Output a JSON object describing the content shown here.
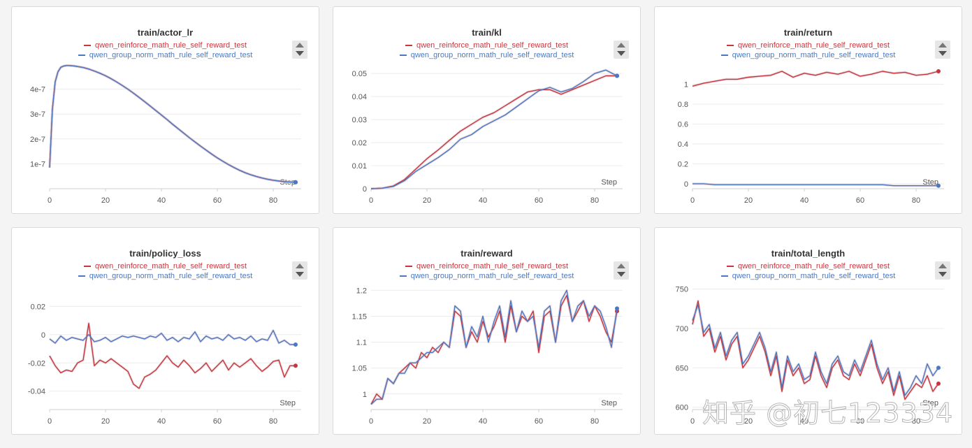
{
  "colors": {
    "series0": "#c9353d",
    "series1": "#4a78c2",
    "grid": "#ececec",
    "axis": "#cfcfcf",
    "text": "#555555",
    "raw": "#d8c7cb"
  },
  "legend_names": [
    "qwen_reinforce_math_rule_self_reward_test",
    "qwen_group_norm_math_rule_self_reward_test"
  ],
  "step_label": "Step",
  "watermark": "知乎 @初七123334",
  "chart_data": [
    {
      "type": "line",
      "title": "train/actor_lr",
      "xlabel": "Step",
      "xlim": [
        0,
        90
      ],
      "ylim": [
        0,
        5e-07
      ],
      "xticks": [
        0,
        20,
        40,
        60,
        80
      ],
      "yticks": [
        1e-07,
        2e-07,
        3e-07,
        4e-07
      ],
      "yticklabels": [
        "1e-7",
        "2e-7",
        "3e-7",
        "4e-7"
      ],
      "grid": true,
      "legend": "top-center",
      "x": [
        0,
        1,
        2,
        3,
        4,
        5,
        6,
        7,
        8,
        9,
        10,
        12,
        14,
        16,
        18,
        20,
        22,
        24,
        26,
        28,
        30,
        32,
        34,
        36,
        38,
        40,
        42,
        44,
        46,
        48,
        50,
        52,
        54,
        56,
        58,
        60,
        62,
        64,
        66,
        68,
        70,
        72,
        74,
        76,
        78,
        80,
        82,
        84,
        86,
        88
      ],
      "series": [
        {
          "name": "qwen_reinforce_math_rule_self_reward_test",
          "values": [
            8.5e-08,
            3.2e-07,
            4.3e-07,
            4.7e-07,
            4.88e-07,
            4.93e-07,
            4.95e-07,
            4.95e-07,
            4.94e-07,
            4.93e-07,
            4.91e-07,
            4.87e-07,
            4.81e-07,
            4.73e-07,
            4.64e-07,
            4.54e-07,
            4.42e-07,
            4.29e-07,
            4.15e-07,
            4e-07,
            3.84e-07,
            3.67e-07,
            3.5e-07,
            3.32e-07,
            3.14e-07,
            2.96e-07,
            2.78e-07,
            2.59e-07,
            2.41e-07,
            2.23e-07,
            2.05e-07,
            1.88e-07,
            1.71e-07,
            1.55e-07,
            1.39e-07,
            1.24e-07,
            1.1e-07,
            9.7e-08,
            8.5e-08,
            7.4e-08,
            6.4e-08,
            5.6e-08,
            4.9e-08,
            4.3e-08,
            3.8e-08,
            3.4e-08,
            3.1e-08,
            2.8e-08,
            2.7e-08,
            2.6e-08
          ]
        },
        {
          "name": "qwen_group_norm_math_rule_self_reward_test",
          "values": [
            8.5e-08,
            3.2e-07,
            4.3e-07,
            4.7e-07,
            4.88e-07,
            4.93e-07,
            4.95e-07,
            4.95e-07,
            4.94e-07,
            4.93e-07,
            4.91e-07,
            4.87e-07,
            4.81e-07,
            4.73e-07,
            4.64e-07,
            4.54e-07,
            4.42e-07,
            4.29e-07,
            4.15e-07,
            4e-07,
            3.84e-07,
            3.67e-07,
            3.5e-07,
            3.32e-07,
            3.14e-07,
            2.96e-07,
            2.78e-07,
            2.59e-07,
            2.41e-07,
            2.23e-07,
            2.05e-07,
            1.88e-07,
            1.71e-07,
            1.55e-07,
            1.39e-07,
            1.24e-07,
            1.1e-07,
            9.7e-08,
            8.5e-08,
            7.4e-08,
            6.4e-08,
            5.6e-08,
            4.9e-08,
            4.3e-08,
            3.8e-08,
            3.4e-08,
            3.1e-08,
            2.8e-08,
            2.7e-08,
            2.6e-08
          ]
        }
      ]
    },
    {
      "type": "line",
      "title": "train/kl",
      "xlabel": "Step",
      "xlim": [
        0,
        90
      ],
      "ylim": [
        0,
        0.054
      ],
      "xticks": [
        0,
        20,
        40,
        60,
        80
      ],
      "yticks": [
        0,
        0.01,
        0.02,
        0.03,
        0.04,
        0.05
      ],
      "yticklabels": [
        "0",
        "0.01",
        "0.02",
        "0.03",
        "0.04",
        "0.05"
      ],
      "grid": true,
      "legend": "top-center",
      "x": [
        0,
        4,
        8,
        12,
        16,
        20,
        24,
        28,
        32,
        36,
        40,
        44,
        48,
        52,
        56,
        60,
        64,
        68,
        72,
        76,
        80,
        84,
        88
      ],
      "series": [
        {
          "name": "qwen_reinforce_math_rule_self_reward_test",
          "values": [
            0,
            0.0002,
            0.0012,
            0.004,
            0.0085,
            0.013,
            0.0168,
            0.021,
            0.025,
            0.028,
            0.031,
            0.033,
            0.036,
            0.039,
            0.042,
            0.043,
            0.043,
            0.041,
            0.043,
            0.045,
            0.047,
            0.049,
            0.049
          ]
        },
        {
          "name": "qwen_group_norm_math_rule_self_reward_test",
          "values": [
            0,
            0.0002,
            0.001,
            0.0035,
            0.0075,
            0.0105,
            0.0135,
            0.017,
            0.0215,
            0.0235,
            0.027,
            0.0295,
            0.032,
            0.0355,
            0.039,
            0.0425,
            0.044,
            0.042,
            0.0435,
            0.0465,
            0.05,
            0.0515,
            0.049
          ]
        }
      ]
    },
    {
      "type": "line",
      "title": "train/return",
      "xlabel": "Step",
      "xlim": [
        0,
        90
      ],
      "ylim": [
        -0.05,
        1.2
      ],
      "xticks": [
        0,
        20,
        40,
        60,
        80
      ],
      "yticks": [
        0,
        0.2,
        0.4,
        0.6,
        0.8,
        1
      ],
      "yticklabels": [
        "0",
        "0.2",
        "0.4",
        "0.6",
        "0.8",
        "1"
      ],
      "grid": true,
      "legend": "top-center",
      "x": [
        0,
        4,
        8,
        12,
        16,
        20,
        24,
        28,
        32,
        36,
        40,
        44,
        48,
        52,
        56,
        60,
        64,
        68,
        72,
        76,
        80,
        84,
        88
      ],
      "series": [
        {
          "name": "qwen_reinforce_math_rule_self_reward_test",
          "values": [
            0.98,
            1.01,
            1.03,
            1.05,
            1.05,
            1.07,
            1.08,
            1.09,
            1.13,
            1.07,
            1.11,
            1.09,
            1.12,
            1.1,
            1.13,
            1.08,
            1.1,
            1.13,
            1.11,
            1.12,
            1.09,
            1.1,
            1.13
          ]
        },
        {
          "name": "qwen_group_norm_math_rule_self_reward_test",
          "values": [
            0,
            0,
            -0.01,
            -0.01,
            -0.01,
            -0.01,
            -0.01,
            -0.01,
            -0.01,
            -0.01,
            -0.01,
            -0.01,
            -0.01,
            -0.01,
            -0.01,
            -0.01,
            -0.01,
            -0.01,
            -0.02,
            -0.02,
            -0.02,
            -0.02,
            -0.02
          ]
        }
      ]
    },
    {
      "type": "line",
      "title": "train/policy_loss",
      "xlabel": "Step",
      "xlim": [
        0,
        90
      ],
      "ylim": [
        -0.053,
        0.035
      ],
      "xticks": [
        0,
        20,
        40,
        60,
        80
      ],
      "yticks": [
        -0.04,
        -0.02,
        0,
        0.02
      ],
      "yticklabels": [
        "-0.04",
        "-0.02",
        "0",
        "0.02"
      ],
      "grid": true,
      "legend": "top-center",
      "x": [
        0,
        2,
        4,
        6,
        8,
        10,
        12,
        14,
        16,
        18,
        20,
        22,
        24,
        26,
        28,
        30,
        32,
        34,
        36,
        38,
        40,
        42,
        44,
        46,
        48,
        50,
        52,
        54,
        56,
        58,
        60,
        62,
        64,
        66,
        68,
        70,
        72,
        74,
        76,
        78,
        80,
        82,
        84,
        86,
        88
      ],
      "series": [
        {
          "name": "qwen_reinforce_math_rule_self_reward_test",
          "values": [
            -0.015,
            -0.022,
            -0.027,
            -0.025,
            -0.026,
            -0.02,
            -0.018,
            0.008,
            -0.022,
            -0.018,
            -0.02,
            -0.017,
            -0.02,
            -0.023,
            -0.026,
            -0.035,
            -0.038,
            -0.03,
            -0.028,
            -0.025,
            -0.02,
            -0.015,
            -0.02,
            -0.023,
            -0.018,
            -0.022,
            -0.027,
            -0.024,
            -0.02,
            -0.026,
            -0.022,
            -0.018,
            -0.025,
            -0.02,
            -0.023,
            -0.02,
            -0.017,
            -0.022,
            -0.026,
            -0.023,
            -0.019,
            -0.018,
            -0.03,
            -0.022,
            -0.022
          ]
        },
        {
          "name": "qwen_group_norm_math_rule_self_reward_test",
          "values": [
            -0.003,
            -0.006,
            -0.001,
            -0.004,
            -0.002,
            -0.003,
            -0.004,
            0,
            -0.005,
            -0.004,
            -0.002,
            -0.005,
            -0.003,
            -0.001,
            -0.002,
            -0.001,
            -0.002,
            -0.003,
            -0.001,
            -0.002,
            0.001,
            -0.004,
            -0.002,
            -0.005,
            -0.002,
            -0.003,
            0.002,
            -0.005,
            -0.001,
            -0.003,
            -0.002,
            -0.004,
            0,
            -0.003,
            -0.002,
            -0.004,
            -0.001,
            -0.005,
            -0.003,
            -0.004,
            0.003,
            -0.006,
            -0.004,
            -0.007,
            -0.007
          ]
        }
      ]
    },
    {
      "type": "line",
      "title": "train/reward",
      "xlabel": "Step",
      "xlim": [
        0,
        90
      ],
      "ylim": [
        0.97,
        1.21
      ],
      "xticks": [
        0,
        20,
        40,
        60,
        80
      ],
      "yticks": [
        1,
        1.05,
        1.1,
        1.15,
        1.2
      ],
      "yticklabels": [
        "1",
        "1.05",
        "1.1",
        "1.15",
        "1.2"
      ],
      "grid": true,
      "legend": "top-center",
      "x": [
        0,
        2,
        4,
        6,
        8,
        10,
        12,
        14,
        16,
        18,
        20,
        22,
        24,
        26,
        28,
        30,
        32,
        34,
        36,
        38,
        40,
        42,
        44,
        46,
        48,
        50,
        52,
        54,
        56,
        58,
        60,
        62,
        64,
        66,
        68,
        70,
        72,
        74,
        76,
        78,
        80,
        82,
        84,
        86,
        88
      ],
      "series": [
        {
          "name": "qwen_reinforce_math_rule_self_reward_test",
          "values": [
            0.98,
            1.0,
            0.99,
            1.03,
            1.02,
            1.04,
            1.05,
            1.06,
            1.05,
            1.08,
            1.07,
            1.09,
            1.08,
            1.1,
            1.09,
            1.16,
            1.15,
            1.09,
            1.12,
            1.1,
            1.14,
            1.11,
            1.13,
            1.16,
            1.1,
            1.17,
            1.12,
            1.15,
            1.14,
            1.16,
            1.08,
            1.15,
            1.16,
            1.1,
            1.17,
            1.19,
            1.14,
            1.16,
            1.18,
            1.14,
            1.17,
            1.15,
            1.12,
            1.1,
            1.16
          ]
        },
        {
          "name": "qwen_group_norm_math_rule_self_reward_test",
          "values": [
            0.98,
            0.99,
            0.99,
            1.03,
            1.02,
            1.04,
            1.04,
            1.06,
            1.06,
            1.07,
            1.08,
            1.08,
            1.09,
            1.1,
            1.09,
            1.17,
            1.16,
            1.09,
            1.13,
            1.11,
            1.15,
            1.1,
            1.14,
            1.17,
            1.11,
            1.18,
            1.12,
            1.16,
            1.14,
            1.15,
            1.09,
            1.16,
            1.17,
            1.1,
            1.18,
            1.2,
            1.14,
            1.17,
            1.18,
            1.15,
            1.17,
            1.16,
            1.13,
            1.09,
            1.165
          ]
        }
      ]
    },
    {
      "type": "line",
      "title": "train/total_length",
      "xlabel": "Step",
      "xlim": [
        0,
        90
      ],
      "ylim": [
        597,
        755
      ],
      "xticks": [
        0,
        20,
        40,
        60,
        80
      ],
      "yticks": [
        600,
        650,
        700,
        750
      ],
      "yticklabels": [
        "600",
        "650",
        "700",
        "750"
      ],
      "grid": true,
      "legend": "top-center",
      "x": [
        0,
        2,
        4,
        6,
        8,
        10,
        12,
        14,
        16,
        18,
        20,
        22,
        24,
        26,
        28,
        30,
        32,
        34,
        36,
        38,
        40,
        42,
        44,
        46,
        48,
        50,
        52,
        54,
        56,
        58,
        60,
        62,
        64,
        66,
        68,
        70,
        72,
        74,
        76,
        78,
        80,
        82,
        84,
        86,
        88
      ],
      "series": [
        {
          "name": "qwen_reinforce_math_rule_self_reward_test",
          "values": [
            705,
            735,
            690,
            700,
            670,
            690,
            660,
            680,
            690,
            650,
            660,
            675,
            690,
            670,
            640,
            665,
            620,
            660,
            640,
            650,
            630,
            635,
            665,
            640,
            625,
            650,
            660,
            640,
            635,
            655,
            640,
            660,
            680,
            650,
            630,
            645,
            615,
            640,
            610,
            620,
            630,
            625,
            640,
            620,
            630
          ]
        },
        {
          "name": "qwen_group_norm_math_rule_self_reward_test",
          "values": [
            710,
            730,
            695,
            705,
            675,
            695,
            665,
            685,
            695,
            655,
            665,
            680,
            695,
            675,
            645,
            670,
            625,
            665,
            645,
            655,
            635,
            640,
            670,
            645,
            630,
            655,
            665,
            645,
            640,
            660,
            645,
            665,
            685,
            655,
            635,
            650,
            620,
            645,
            615,
            625,
            640,
            630,
            655,
            640,
            650
          ]
        }
      ]
    }
  ]
}
